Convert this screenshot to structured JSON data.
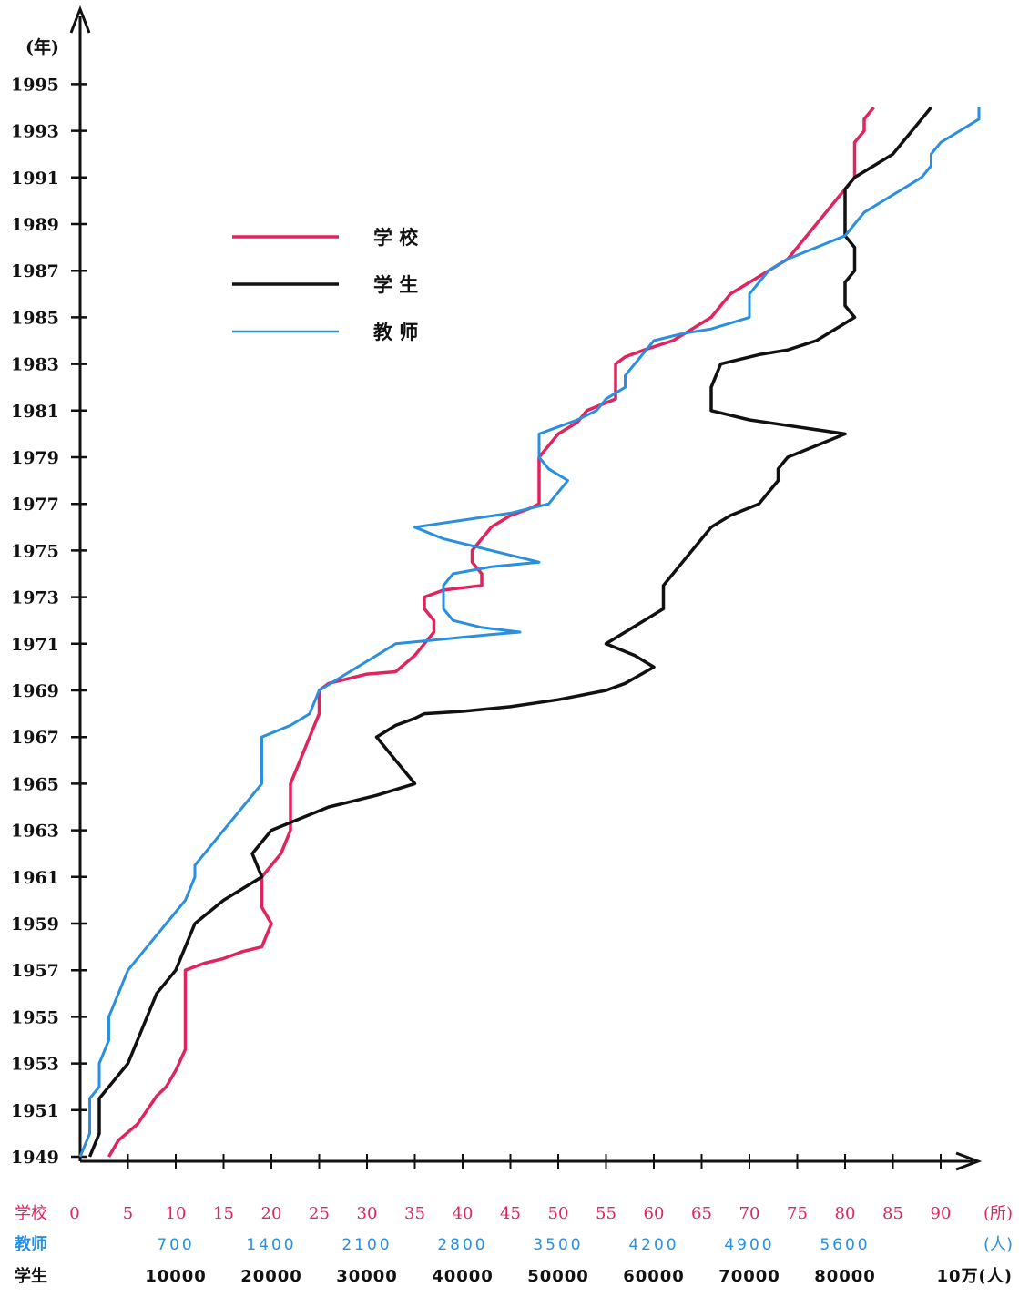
{
  "chart_data": {
    "type": "line",
    "y_axis_label": "(年)",
    "y_ticks": [
      "1949",
      "1951",
      "1953",
      "1955",
      "1957",
      "1959",
      "1961",
      "1963",
      "1965",
      "1967",
      "1969",
      "1971",
      "1973",
      "1975",
      "1977",
      "1979",
      "1981",
      "1983",
      "1985",
      "1987",
      "1989",
      "1991",
      "1993",
      "1995"
    ],
    "x_axes": [
      {
        "name": "学校",
        "unit": "(所)",
        "color": "#e0245e",
        "ticks": [
          "0",
          "5",
          "10",
          "15",
          "20",
          "25",
          "30",
          "35",
          "40",
          "45",
          "50",
          "55",
          "60",
          "65",
          "70",
          "75",
          "80",
          "85",
          "90"
        ]
      },
      {
        "name": "教师",
        "unit": "(人)",
        "color": "#2b8fe0",
        "ticks": [
          "700",
          "1400",
          "2100",
          "2800",
          "3500",
          "4200",
          "4900",
          "5600"
        ]
      },
      {
        "name": "学生",
        "unit": "10万(人)",
        "color": "#111111",
        "ticks": [
          "10000",
          "20000",
          "30000",
          "40000",
          "50000",
          "60000",
          "70000",
          "80000"
        ]
      }
    ],
    "legend": {
      "placement": "top-left",
      "entries": [
        {
          "label": "学 校",
          "color": "#e0245e"
        },
        {
          "label": "学 生",
          "color": "#111111"
        },
        {
          "label": "教 师",
          "color": "#2b8fe0"
        }
      ]
    },
    "series": [
      {
        "name": "学校",
        "color": "#e0245e",
        "axis": 0,
        "points": [
          [
            3,
            1949
          ],
          [
            4,
            1949.7
          ],
          [
            6,
            1950.4
          ],
          [
            7,
            1951
          ],
          [
            8,
            1951.6
          ],
          [
            9,
            1952
          ],
          [
            10,
            1952.7
          ],
          [
            11,
            1953.6
          ],
          [
            11,
            1955
          ],
          [
            11,
            1956.3
          ],
          [
            11,
            1957
          ],
          [
            13,
            1957.3
          ],
          [
            15,
            1957.5
          ],
          [
            17,
            1957.8
          ],
          [
            19,
            1958
          ],
          [
            20,
            1959
          ],
          [
            19,
            1959.7
          ],
          [
            19,
            1960.5
          ],
          [
            19,
            1961
          ],
          [
            20,
            1961.5
          ],
          [
            21,
            1962
          ],
          [
            22,
            1963
          ],
          [
            22,
            1964
          ],
          [
            22,
            1965
          ],
          [
            23,
            1966
          ],
          [
            24,
            1967
          ],
          [
            25,
            1968
          ],
          [
            25,
            1969
          ],
          [
            26,
            1969.3
          ],
          [
            28,
            1969.5
          ],
          [
            30,
            1969.7
          ],
          [
            33,
            1969.8
          ],
          [
            35,
            1970.5
          ],
          [
            36,
            1971
          ],
          [
            37,
            1971.5
          ],
          [
            37,
            1972
          ],
          [
            36,
            1972.5
          ],
          [
            36,
            1973
          ],
          [
            38,
            1973.3
          ],
          [
            42,
            1973.5
          ],
          [
            42,
            1974
          ],
          [
            41,
            1974.5
          ],
          [
            41,
            1975
          ],
          [
            42,
            1975.5
          ],
          [
            43,
            1976
          ],
          [
            45,
            1976.5
          ],
          [
            47,
            1976.8
          ],
          [
            48,
            1977
          ],
          [
            48,
            1978
          ],
          [
            48,
            1978.5
          ],
          [
            48,
            1979
          ],
          [
            49,
            1979.5
          ],
          [
            50,
            1980
          ],
          [
            52,
            1980.5
          ],
          [
            53,
            1981
          ],
          [
            56,
            1981.5
          ],
          [
            56,
            1982
          ],
          [
            56,
            1982.5
          ],
          [
            56,
            1983
          ],
          [
            57,
            1983.3
          ],
          [
            59,
            1983.6
          ],
          [
            62,
            1984
          ],
          [
            64,
            1984.5
          ],
          [
            66,
            1985
          ],
          [
            67,
            1985.5
          ],
          [
            68,
            1986
          ],
          [
            70,
            1986.5
          ],
          [
            72,
            1987
          ],
          [
            74,
            1987.5
          ],
          [
            75,
            1988
          ],
          [
            76,
            1988.5
          ],
          [
            77,
            1989
          ],
          [
            78,
            1989.5
          ],
          [
            79,
            1990
          ],
          [
            80,
            1990.5
          ],
          [
            81,
            1991
          ],
          [
            81,
            1992
          ],
          [
            81,
            1992.5
          ],
          [
            82,
            1993
          ],
          [
            82,
            1993.5
          ],
          [
            83,
            1994
          ]
        ]
      },
      {
        "name": "学生",
        "color": "#111111",
        "axis": 0,
        "points": [
          [
            1,
            1949
          ],
          [
            2,
            1950
          ],
          [
            2,
            1951
          ],
          [
            2,
            1951.5
          ],
          [
            3,
            1952
          ],
          [
            4,
            1952.5
          ],
          [
            5,
            1953
          ],
          [
            6,
            1954
          ],
          [
            7,
            1955
          ],
          [
            8,
            1956
          ],
          [
            10,
            1957
          ],
          [
            11,
            1958
          ],
          [
            12,
            1959
          ],
          [
            15,
            1960
          ],
          [
            19,
            1961
          ],
          [
            18,
            1962
          ],
          [
            19,
            1962.5
          ],
          [
            20,
            1963
          ],
          [
            23,
            1963.5
          ],
          [
            26,
            1964
          ],
          [
            28,
            1964.2
          ],
          [
            31,
            1964.5
          ],
          [
            35,
            1965
          ],
          [
            33,
            1966
          ],
          [
            32,
            1966.5
          ],
          [
            31,
            1967
          ],
          [
            33,
            1967.5
          ],
          [
            35,
            1967.8
          ],
          [
            36,
            1968
          ],
          [
            40,
            1968.1
          ],
          [
            45,
            1968.3
          ],
          [
            50,
            1968.6
          ],
          [
            55,
            1969
          ],
          [
            57,
            1969.3
          ],
          [
            60,
            1970
          ],
          [
            58,
            1970.5
          ],
          [
            55,
            1971
          ],
          [
            57,
            1971.5
          ],
          [
            59,
            1972
          ],
          [
            61,
            1972.5
          ],
          [
            61,
            1973
          ],
          [
            61,
            1973.5
          ],
          [
            62,
            1974
          ],
          [
            63,
            1974.5
          ],
          [
            64,
            1975
          ],
          [
            65,
            1975.5
          ],
          [
            66,
            1976
          ],
          [
            68,
            1976.5
          ],
          [
            71,
            1977
          ],
          [
            72,
            1977.5
          ],
          [
            73,
            1978
          ],
          [
            73,
            1978.5
          ],
          [
            74,
            1979
          ],
          [
            77,
            1979.5
          ],
          [
            80,
            1980
          ],
          [
            75,
            1980.3
          ],
          [
            70,
            1980.6
          ],
          [
            66,
            1981
          ],
          [
            66,
            1981.5
          ],
          [
            66,
            1982
          ],
          [
            67,
            1983
          ],
          [
            71,
            1983.4
          ],
          [
            74,
            1983.6
          ],
          [
            77,
            1984
          ],
          [
            79,
            1984.5
          ],
          [
            81,
            1985
          ],
          [
            80,
            1985.5
          ],
          [
            80,
            1986
          ],
          [
            80,
            1986.5
          ],
          [
            81,
            1987
          ],
          [
            81,
            1987.5
          ],
          [
            81,
            1988
          ],
          [
            80,
            1988.5
          ],
          [
            80,
            1989
          ],
          [
            80,
            1989.5
          ],
          [
            80,
            1990
          ],
          [
            80,
            1990.5
          ],
          [
            81,
            1991
          ],
          [
            83,
            1991.5
          ],
          [
            85,
            1992
          ],
          [
            86,
            1992.5
          ],
          [
            87,
            1993
          ],
          [
            88,
            1993.5
          ],
          [
            89,
            1994
          ]
        ]
      },
      {
        "name": "教师",
        "color": "#2b8fe0",
        "axis": 0,
        "points": [
          [
            0,
            1949
          ],
          [
            1,
            1950
          ],
          [
            1,
            1951
          ],
          [
            1,
            1951.5
          ],
          [
            2,
            1952
          ],
          [
            2,
            1953
          ],
          [
            3,
            1954
          ],
          [
            3,
            1955
          ],
          [
            4,
            1956
          ],
          [
            5,
            1957
          ],
          [
            7,
            1958
          ],
          [
            9,
            1959
          ],
          [
            11,
            1960
          ],
          [
            12,
            1961
          ],
          [
            12,
            1961.5
          ],
          [
            13,
            1962
          ],
          [
            15,
            1963
          ],
          [
            17,
            1964
          ],
          [
            19,
            1965
          ],
          [
            19,
            1966
          ],
          [
            19,
            1967
          ],
          [
            22,
            1967.5
          ],
          [
            24,
            1968
          ],
          [
            25,
            1969
          ],
          [
            27,
            1969.5
          ],
          [
            29,
            1970
          ],
          [
            31,
            1970.5
          ],
          [
            33,
            1971
          ],
          [
            38,
            1971.2
          ],
          [
            43,
            1971.4
          ],
          [
            46,
            1971.5
          ],
          [
            42,
            1971.7
          ],
          [
            39,
            1972
          ],
          [
            38,
            1972.5
          ],
          [
            38,
            1973
          ],
          [
            38,
            1973.3
          ],
          [
            38,
            1973.5
          ],
          [
            39,
            1974
          ],
          [
            43,
            1974.3
          ],
          [
            48,
            1974.5
          ],
          [
            43,
            1975
          ],
          [
            38,
            1975.5
          ],
          [
            35,
            1976
          ],
          [
            40,
            1976.3
          ],
          [
            45,
            1976.6
          ],
          [
            49,
            1977
          ],
          [
            50,
            1977.5
          ],
          [
            51,
            1978
          ],
          [
            49,
            1978.5
          ],
          [
            48,
            1979
          ],
          [
            48,
            1979.5
          ],
          [
            48,
            1980
          ],
          [
            50,
            1980.3
          ],
          [
            52,
            1980.6
          ],
          [
            54,
            1981
          ],
          [
            55,
            1981.5
          ],
          [
            57,
            1982
          ],
          [
            57,
            1982.5
          ],
          [
            58,
            1983
          ],
          [
            59,
            1983.5
          ],
          [
            60,
            1984
          ],
          [
            63,
            1984.3
          ],
          [
            66,
            1984.5
          ],
          [
            70,
            1985
          ],
          [
            70,
            1985.5
          ],
          [
            70,
            1986
          ],
          [
            71,
            1986.5
          ],
          [
            72,
            1987
          ],
          [
            74,
            1987.5
          ],
          [
            77,
            1988
          ],
          [
            80,
            1988.5
          ],
          [
            81,
            1989
          ],
          [
            82,
            1989.5
          ],
          [
            84,
            1990
          ],
          [
            86,
            1990.5
          ],
          [
            88,
            1991
          ],
          [
            89,
            1991.5
          ],
          [
            89,
            1992
          ],
          [
            90,
            1992.5
          ],
          [
            92,
            1993
          ],
          [
            94,
            1993.5
          ],
          [
            94,
            1994
          ]
        ]
      }
    ],
    "xlim": [
      0,
      95
    ],
    "ylim": [
      1949,
      1995
    ],
    "grid": false
  }
}
